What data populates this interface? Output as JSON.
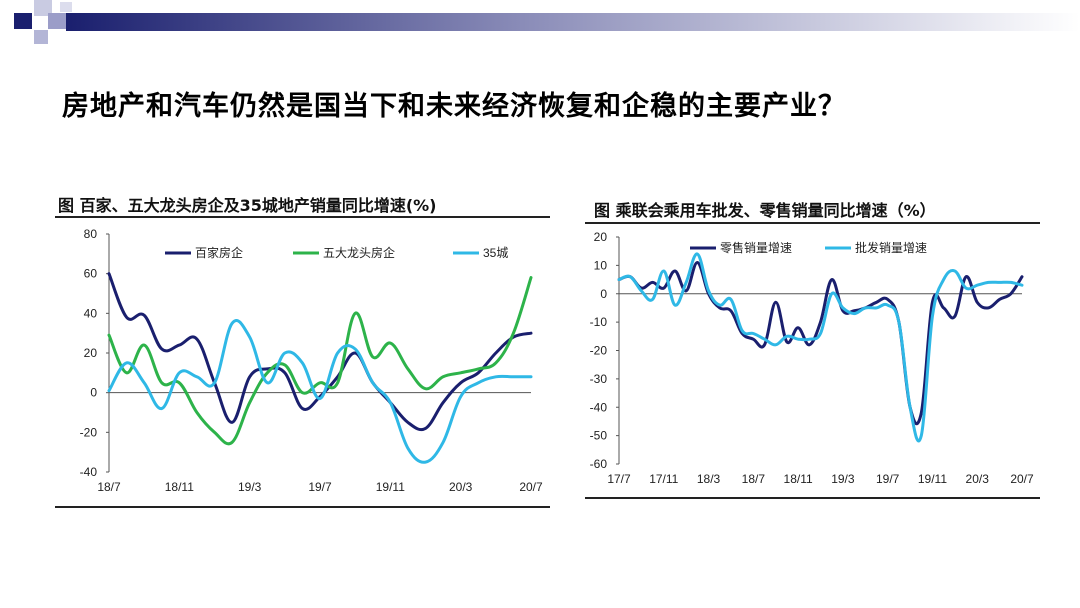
{
  "slide": {
    "title": "房地产和汽车仍然是国当下和未来经济恢复和企稳的主要产业？"
  },
  "colors": {
    "navy": "#1a1f6e",
    "green": "#2db34a",
    "cyan": "#2fb8e6",
    "bar_dark": "#1a1f6e"
  },
  "chart_data": [
    {
      "type": "line",
      "title": "图  百家、五大龙头房企及35城地产销量同比增速(%)",
      "xlabel": "",
      "ylabel": "",
      "ylim": [
        -40,
        80
      ],
      "yticks": [
        "80",
        "60",
        "40",
        "20",
        "0",
        "-20",
        "-40"
      ],
      "xticks": [
        "18/7",
        "18/11",
        "19/3",
        "19/7",
        "19/11",
        "20/3",
        "20/7"
      ],
      "xlim": [
        0,
        24
      ],
      "legend": "top",
      "series": [
        {
          "name": "百家房企",
          "color": "#1a1f6e",
          "x": [
            0,
            1,
            2,
            3,
            4,
            5,
            6,
            7,
            8,
            9,
            10,
            11,
            12,
            13,
            14,
            15,
            16,
            17,
            18,
            19,
            20,
            21,
            22,
            23,
            24
          ],
          "values": [
            60,
            38,
            39,
            22,
            24,
            27,
            5,
            -15,
            8,
            12,
            10,
            -8,
            -2,
            8,
            20,
            5,
            -5,
            -15,
            -18,
            -5,
            5,
            10,
            20,
            28,
            30
          ]
        },
        {
          "name": "五大龙头房企",
          "color": "#2db34a",
          "x": [
            0,
            1,
            2,
            3,
            4,
            5,
            6,
            7,
            8,
            9,
            10,
            11,
            12,
            13,
            14,
            15,
            16,
            17,
            18,
            19,
            20,
            21,
            22,
            23,
            24
          ],
          "values": [
            29,
            10,
            24,
            5,
            5,
            -10,
            -20,
            -25,
            -5,
            10,
            14,
            0,
            5,
            5,
            40,
            18,
            25,
            12,
            2,
            8,
            10,
            12,
            15,
            30,
            58
          ]
        },
        {
          "name": "35城",
          "color": "#2fb8e6",
          "x": [
            0,
            1,
            2,
            3,
            4,
            5,
            6,
            7,
            8,
            9,
            10,
            11,
            12,
            13,
            14,
            15,
            16,
            17,
            18,
            19,
            20,
            21,
            22,
            23,
            24
          ],
          "values": [
            1,
            15,
            5,
            -8,
            10,
            8,
            5,
            35,
            28,
            5,
            20,
            15,
            -3,
            20,
            22,
            5,
            -5,
            -28,
            -35,
            -25,
            -2,
            5,
            8,
            8,
            8
          ]
        }
      ]
    },
    {
      "type": "line",
      "title": "图  乘联会乘用车批发、零售销量同比增速（%）",
      "xlabel": "",
      "ylabel": "",
      "ylim": [
        -60,
        20
      ],
      "yticks": [
        "20",
        "10",
        "0",
        "-10",
        "-20",
        "-30",
        "-40",
        "-50",
        "-60"
      ],
      "xticks": [
        "17/7",
        "17/11",
        "18/3",
        "18/7",
        "18/11",
        "19/3",
        "19/7",
        "19/11",
        "20/3",
        "20/7"
      ],
      "xlim": [
        0,
        36
      ],
      "legend": "top",
      "series": [
        {
          "name": "零售销量增速",
          "color": "#1a1f6e",
          "x": [
            0,
            1,
            2,
            3,
            4,
            5,
            6,
            7,
            8,
            9,
            10,
            11,
            12,
            13,
            14,
            15,
            16,
            17,
            18,
            19,
            20,
            21,
            22,
            23,
            24,
            25,
            26,
            27,
            28,
            29,
            30,
            31,
            32,
            33,
            34,
            35,
            36
          ],
          "values": [
            5,
            6,
            2,
            4,
            2,
            8,
            1,
            11,
            0,
            -5,
            -6,
            -14,
            -16,
            -18,
            -3,
            -17,
            -12,
            -18,
            -10,
            5,
            -6,
            -6,
            -5,
            -3,
            -2,
            -10,
            -40,
            -42,
            -3,
            -5,
            -8,
            6,
            -3,
            -5,
            -2,
            0,
            6
          ]
        },
        {
          "name": "批发销量增速",
          "color": "#2fb8e6",
          "x": [
            0,
            1,
            2,
            3,
            4,
            5,
            6,
            7,
            8,
            9,
            10,
            11,
            12,
            13,
            14,
            15,
            16,
            17,
            18,
            19,
            20,
            21,
            22,
            23,
            24,
            25,
            26,
            27,
            28,
            29,
            30,
            31,
            32,
            33,
            34,
            35,
            36
          ],
          "values": [
            5,
            6,
            1,
            -2,
            8,
            -4,
            4,
            14,
            1,
            -4,
            -2,
            -13,
            -14,
            -16,
            -18,
            -15,
            -16,
            -16,
            -14,
            0,
            -5,
            -7,
            -5,
            -5,
            -4,
            -10,
            -40,
            -50,
            -8,
            5,
            8,
            2,
            3,
            4,
            4,
            4,
            3
          ]
        }
      ]
    }
  ]
}
